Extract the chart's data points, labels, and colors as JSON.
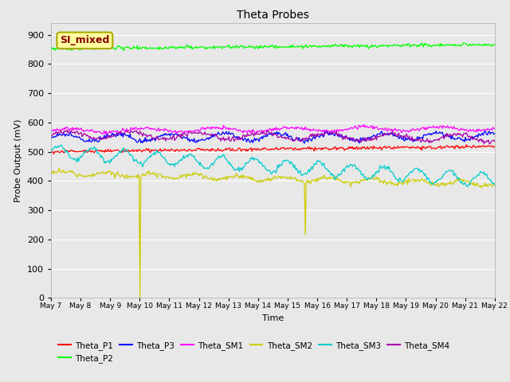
{
  "title": "Theta Probes",
  "xlabel": "Time",
  "ylabel": "Probe Output (mV)",
  "ylim": [
    0,
    940
  ],
  "yticks": [
    0,
    100,
    200,
    300,
    400,
    500,
    600,
    700,
    800,
    900
  ],
  "annotation_text": "SI_mixed",
  "annotation_box_facecolor": "#ffffa0",
  "annotation_text_color": "#880000",
  "annotation_edge_color": "#aaaa00",
  "fig_facecolor": "#e8e8e8",
  "plot_facecolor": "#e8e8e8",
  "grid_color": "#ffffff",
  "series_colors": {
    "Theta_P1": "#ff0000",
    "Theta_P2": "#00ff00",
    "Theta_P3": "#0000ff",
    "Theta_SM1": "#ff00ff",
    "Theta_SM2": "#cccc00",
    "Theta_SM3": "#00cccc",
    "Theta_SM4": "#aa00aa"
  },
  "legend_order": [
    "Theta_P1",
    "Theta_P2",
    "Theta_P3",
    "Theta_SM1",
    "Theta_SM2",
    "Theta_SM3",
    "Theta_SM4"
  ],
  "date_labels": [
    "May 7",
    "May 8",
    "May 9",
    "May 10",
    "May 11",
    "May 12",
    "May 13",
    "May 14",
    "May 15",
    "May 16",
    "May 17",
    "May 18",
    "May 19",
    "May 20",
    "May 21",
    "May 22"
  ],
  "n_points": 500
}
